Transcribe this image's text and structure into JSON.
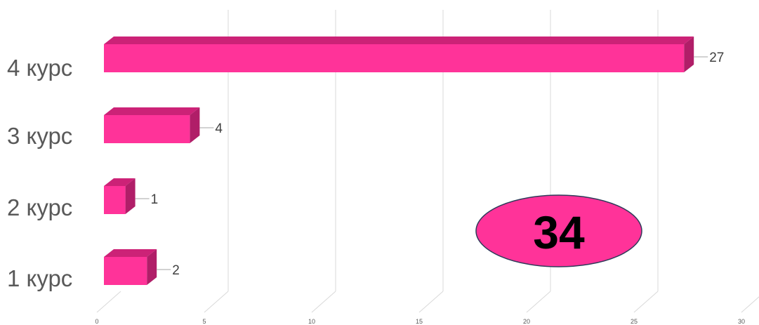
{
  "chart_data": {
    "type": "bar",
    "orientation": "horizontal",
    "categories": [
      "1 курс",
      "2 курс",
      "3 курс",
      "4 курс"
    ],
    "values": [
      2,
      1,
      4,
      27
    ],
    "x_ticks": [
      "0",
      "5",
      "10",
      "15",
      "20",
      "25",
      "30"
    ],
    "xlim": [
      0,
      30
    ],
    "grid": true,
    "bar_color": "#ff3399",
    "bar_top_color": "#cc2277",
    "bar_side_color": "#b01e68",
    "total_label": "34",
    "total_fill": "#ff3399"
  }
}
